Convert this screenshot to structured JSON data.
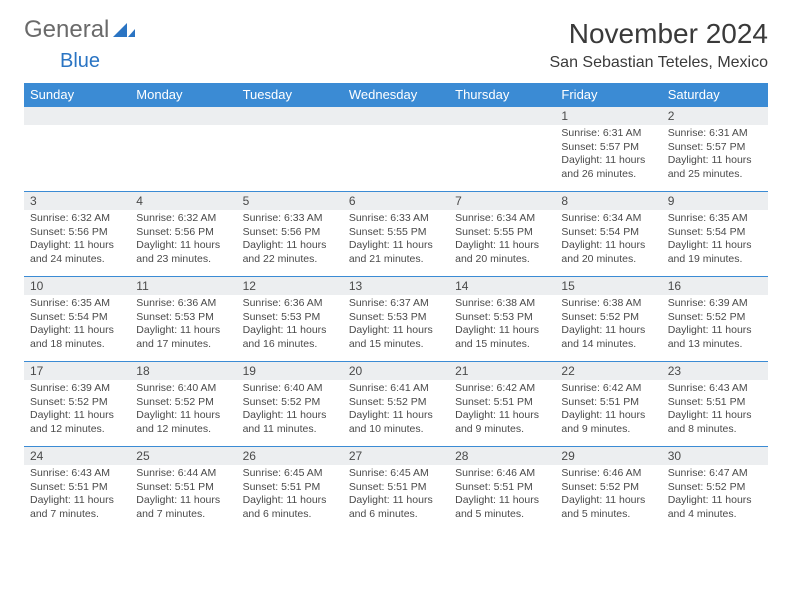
{
  "logo": {
    "word1": "General",
    "word2": "Blue"
  },
  "title": "November 2024",
  "location": "San Sebastian Teteles, Mexico",
  "colors": {
    "header_bg": "#3b8bd4",
    "daynum_bg": "#eceef0",
    "border": "#3b8bd4",
    "logo_gray": "#6a6a6a",
    "logo_blue": "#2a74c3"
  },
  "weekdays": [
    "Sunday",
    "Monday",
    "Tuesday",
    "Wednesday",
    "Thursday",
    "Friday",
    "Saturday"
  ],
  "weeks": [
    [
      {
        "n": "",
        "sr": "",
        "ss": "",
        "dl": ""
      },
      {
        "n": "",
        "sr": "",
        "ss": "",
        "dl": ""
      },
      {
        "n": "",
        "sr": "",
        "ss": "",
        "dl": ""
      },
      {
        "n": "",
        "sr": "",
        "ss": "",
        "dl": ""
      },
      {
        "n": "",
        "sr": "",
        "ss": "",
        "dl": ""
      },
      {
        "n": "1",
        "sr": "Sunrise: 6:31 AM",
        "ss": "Sunset: 5:57 PM",
        "dl": "Daylight: 11 hours and 26 minutes."
      },
      {
        "n": "2",
        "sr": "Sunrise: 6:31 AM",
        "ss": "Sunset: 5:57 PM",
        "dl": "Daylight: 11 hours and 25 minutes."
      }
    ],
    [
      {
        "n": "3",
        "sr": "Sunrise: 6:32 AM",
        "ss": "Sunset: 5:56 PM",
        "dl": "Daylight: 11 hours and 24 minutes."
      },
      {
        "n": "4",
        "sr": "Sunrise: 6:32 AM",
        "ss": "Sunset: 5:56 PM",
        "dl": "Daylight: 11 hours and 23 minutes."
      },
      {
        "n": "5",
        "sr": "Sunrise: 6:33 AM",
        "ss": "Sunset: 5:56 PM",
        "dl": "Daylight: 11 hours and 22 minutes."
      },
      {
        "n": "6",
        "sr": "Sunrise: 6:33 AM",
        "ss": "Sunset: 5:55 PM",
        "dl": "Daylight: 11 hours and 21 minutes."
      },
      {
        "n": "7",
        "sr": "Sunrise: 6:34 AM",
        "ss": "Sunset: 5:55 PM",
        "dl": "Daylight: 11 hours and 20 minutes."
      },
      {
        "n": "8",
        "sr": "Sunrise: 6:34 AM",
        "ss": "Sunset: 5:54 PM",
        "dl": "Daylight: 11 hours and 20 minutes."
      },
      {
        "n": "9",
        "sr": "Sunrise: 6:35 AM",
        "ss": "Sunset: 5:54 PM",
        "dl": "Daylight: 11 hours and 19 minutes."
      }
    ],
    [
      {
        "n": "10",
        "sr": "Sunrise: 6:35 AM",
        "ss": "Sunset: 5:54 PM",
        "dl": "Daylight: 11 hours and 18 minutes."
      },
      {
        "n": "11",
        "sr": "Sunrise: 6:36 AM",
        "ss": "Sunset: 5:53 PM",
        "dl": "Daylight: 11 hours and 17 minutes."
      },
      {
        "n": "12",
        "sr": "Sunrise: 6:36 AM",
        "ss": "Sunset: 5:53 PM",
        "dl": "Daylight: 11 hours and 16 minutes."
      },
      {
        "n": "13",
        "sr": "Sunrise: 6:37 AM",
        "ss": "Sunset: 5:53 PM",
        "dl": "Daylight: 11 hours and 15 minutes."
      },
      {
        "n": "14",
        "sr": "Sunrise: 6:38 AM",
        "ss": "Sunset: 5:53 PM",
        "dl": "Daylight: 11 hours and 15 minutes."
      },
      {
        "n": "15",
        "sr": "Sunrise: 6:38 AM",
        "ss": "Sunset: 5:52 PM",
        "dl": "Daylight: 11 hours and 14 minutes."
      },
      {
        "n": "16",
        "sr": "Sunrise: 6:39 AM",
        "ss": "Sunset: 5:52 PM",
        "dl": "Daylight: 11 hours and 13 minutes."
      }
    ],
    [
      {
        "n": "17",
        "sr": "Sunrise: 6:39 AM",
        "ss": "Sunset: 5:52 PM",
        "dl": "Daylight: 11 hours and 12 minutes."
      },
      {
        "n": "18",
        "sr": "Sunrise: 6:40 AM",
        "ss": "Sunset: 5:52 PM",
        "dl": "Daylight: 11 hours and 12 minutes."
      },
      {
        "n": "19",
        "sr": "Sunrise: 6:40 AM",
        "ss": "Sunset: 5:52 PM",
        "dl": "Daylight: 11 hours and 11 minutes."
      },
      {
        "n": "20",
        "sr": "Sunrise: 6:41 AM",
        "ss": "Sunset: 5:52 PM",
        "dl": "Daylight: 11 hours and 10 minutes."
      },
      {
        "n": "21",
        "sr": "Sunrise: 6:42 AM",
        "ss": "Sunset: 5:51 PM",
        "dl": "Daylight: 11 hours and 9 minutes."
      },
      {
        "n": "22",
        "sr": "Sunrise: 6:42 AM",
        "ss": "Sunset: 5:51 PM",
        "dl": "Daylight: 11 hours and 9 minutes."
      },
      {
        "n": "23",
        "sr": "Sunrise: 6:43 AM",
        "ss": "Sunset: 5:51 PM",
        "dl": "Daylight: 11 hours and 8 minutes."
      }
    ],
    [
      {
        "n": "24",
        "sr": "Sunrise: 6:43 AM",
        "ss": "Sunset: 5:51 PM",
        "dl": "Daylight: 11 hours and 7 minutes."
      },
      {
        "n": "25",
        "sr": "Sunrise: 6:44 AM",
        "ss": "Sunset: 5:51 PM",
        "dl": "Daylight: 11 hours and 7 minutes."
      },
      {
        "n": "26",
        "sr": "Sunrise: 6:45 AM",
        "ss": "Sunset: 5:51 PM",
        "dl": "Daylight: 11 hours and 6 minutes."
      },
      {
        "n": "27",
        "sr": "Sunrise: 6:45 AM",
        "ss": "Sunset: 5:51 PM",
        "dl": "Daylight: 11 hours and 6 minutes."
      },
      {
        "n": "28",
        "sr": "Sunrise: 6:46 AM",
        "ss": "Sunset: 5:51 PM",
        "dl": "Daylight: 11 hours and 5 minutes."
      },
      {
        "n": "29",
        "sr": "Sunrise: 6:46 AM",
        "ss": "Sunset: 5:52 PM",
        "dl": "Daylight: 11 hours and 5 minutes."
      },
      {
        "n": "30",
        "sr": "Sunrise: 6:47 AM",
        "ss": "Sunset: 5:52 PM",
        "dl": "Daylight: 11 hours and 4 minutes."
      }
    ]
  ]
}
